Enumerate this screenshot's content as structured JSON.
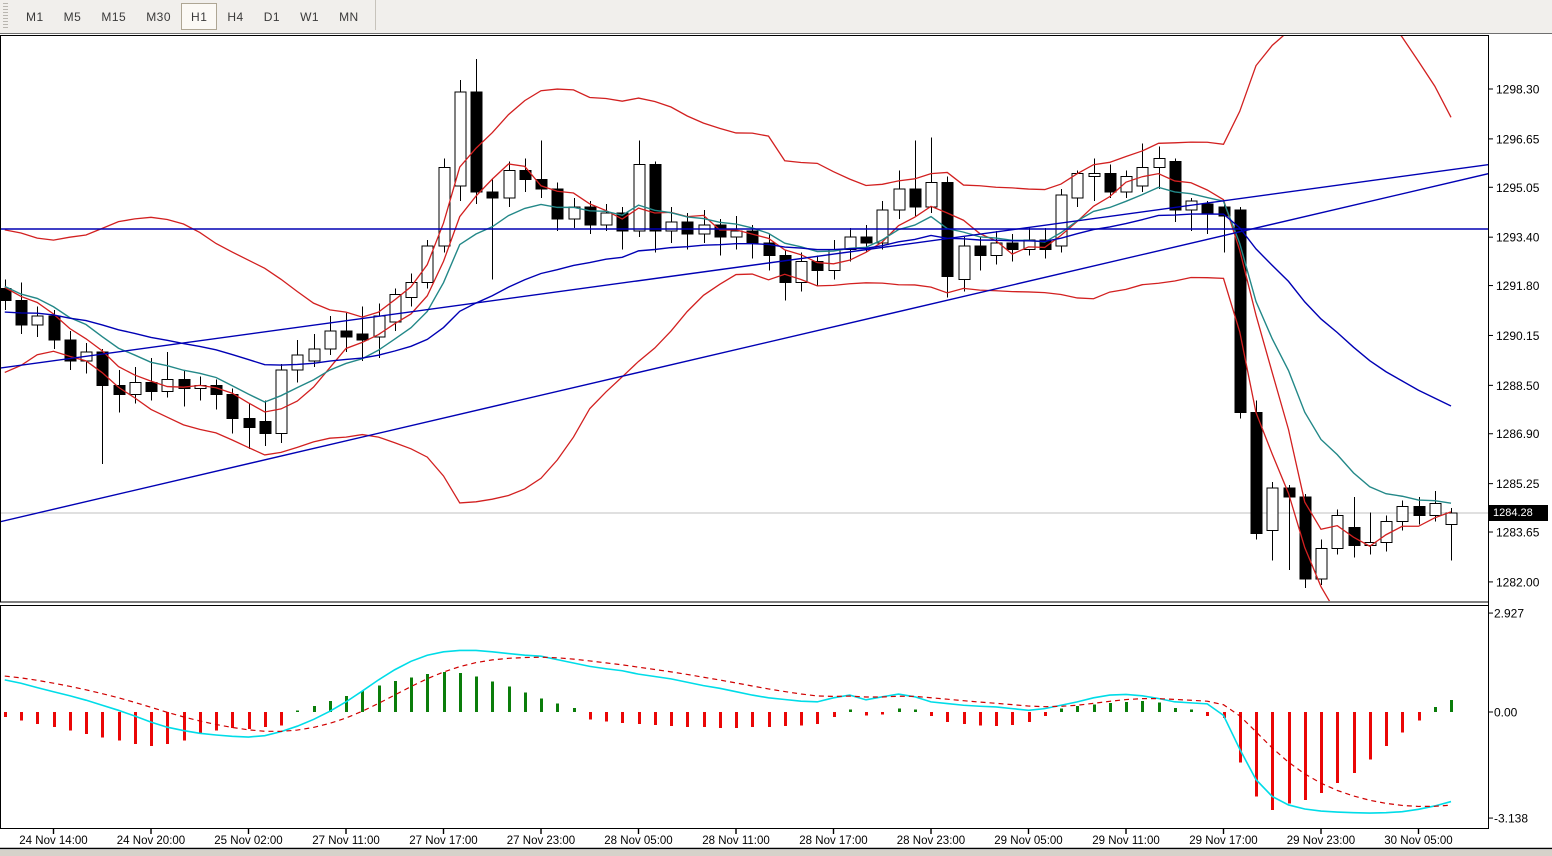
{
  "toolbar": {
    "timeframes": [
      {
        "label": "M1",
        "active": false
      },
      {
        "label": "M5",
        "active": false
      },
      {
        "label": "M15",
        "active": false
      },
      {
        "label": "M30",
        "active": false
      },
      {
        "label": "H1",
        "active": true
      },
      {
        "label": "H4",
        "active": false
      },
      {
        "label": "D1",
        "active": false
      },
      {
        "label": "W1",
        "active": false
      },
      {
        "label": "MN",
        "active": false
      }
    ]
  },
  "price_axis": {
    "current_price": "1284.28",
    "ticks": [
      "1298.30",
      "1296.65",
      "1295.05",
      "1293.40",
      "1291.80",
      "1290.15",
      "1288.50",
      "1286.90",
      "1285.25",
      "1283.65",
      "1282.00"
    ]
  },
  "indicator_axis": {
    "ticks": [
      "2.927",
      "0.00",
      "-3.138"
    ]
  },
  "time_axis": {
    "labels": [
      "24 Nov 14:00",
      "24 Nov 20:00",
      "25 Nov 02:00",
      "27 Nov 11:00",
      "27 Nov 17:00",
      "27 Nov 23:00",
      "28 Nov 05:00",
      "28 Nov 11:00",
      "28 Nov 17:00",
      "28 Nov 23:00",
      "29 Nov 05:00",
      "29 Nov 11:00",
      "29 Nov 17:00",
      "29 Nov 23:00",
      "30 Nov 05:00"
    ]
  },
  "colors": {
    "bull_body": "#ffffff",
    "bear_body": "#000000",
    "candle_outline": "#000000",
    "bands": "#d22020",
    "fast_ma": "#d22020",
    "teal_ma": "#238888",
    "blue_ma": "#0000b4",
    "trendline": "#0000b4",
    "hline": "#0000b4",
    "current_price_line": "#c0c0c0",
    "hist_up": "#0a7d0a",
    "hist_down": "#ea0606",
    "osc_line": "#00dce8",
    "osc_signal": "#d00000",
    "badge_bg": "#000000",
    "badge_text": "#ffffff",
    "border": "#000000",
    "toolbar_bg": "#f1efec",
    "active_tf_bg": "#fbf9f5",
    "bottom_strip": "#d6d2ca"
  },
  "chart_data": {
    "type": "candlestick",
    "timeframe": "H1",
    "price_axis_ticks": [
      1298.3,
      1296.65,
      1295.05,
      1293.4,
      1291.8,
      1290.15,
      1288.5,
      1286.9,
      1285.25,
      1283.65,
      1282.0
    ],
    "visible_price_range": [
      1281.3,
      1300.1
    ],
    "current_price": 1284.28,
    "time_labels": [
      "24 Nov 14:00",
      "24 Nov 20:00",
      "25 Nov 02:00",
      "27 Nov 11:00",
      "27 Nov 17:00",
      "27 Nov 23:00",
      "28 Nov 05:00",
      "28 Nov 11:00",
      "28 Nov 17:00",
      "28 Nov 23:00",
      "29 Nov 05:00",
      "29 Nov 11:00",
      "29 Nov 17:00",
      "29 Nov 23:00",
      "30 Nov 05:00"
    ],
    "label_candle_indices": [
      3,
      9,
      15,
      21,
      27,
      33,
      39,
      45,
      51,
      57,
      63,
      69,
      75,
      81,
      87
    ],
    "candles_ohlc": [
      [
        1291.7,
        1292.0,
        1291.0,
        1291.3
      ],
      [
        1291.3,
        1291.9,
        1290.2,
        1290.5
      ],
      [
        1290.5,
        1291.1,
        1290.1,
        1290.8
      ],
      [
        1290.8,
        1291.0,
        1289.7,
        1290.0
      ],
      [
        1290.0,
        1290.3,
        1289.0,
        1289.3
      ],
      [
        1289.3,
        1289.9,
        1288.9,
        1289.6
      ],
      [
        1289.6,
        1289.7,
        1285.9,
        1288.5
      ],
      [
        1288.5,
        1289.0,
        1287.6,
        1288.2
      ],
      [
        1288.2,
        1289.1,
        1287.9,
        1288.6
      ],
      [
        1288.6,
        1289.4,
        1288.0,
        1288.3
      ],
      [
        1288.3,
        1289.6,
        1288.1,
        1288.7
      ],
      [
        1288.7,
        1289.0,
        1287.8,
        1288.4
      ],
      [
        1288.4,
        1288.8,
        1288.0,
        1288.5
      ],
      [
        1288.5,
        1288.7,
        1287.7,
        1288.2
      ],
      [
        1288.2,
        1288.4,
        1286.9,
        1287.4
      ],
      [
        1287.4,
        1287.9,
        1286.4,
        1287.1
      ],
      [
        1287.3,
        1288.0,
        1286.5,
        1286.9
      ],
      [
        1286.9,
        1289.2,
        1286.6,
        1289.0
      ],
      [
        1289.0,
        1290.0,
        1288.6,
        1289.5
      ],
      [
        1289.3,
        1290.2,
        1289.1,
        1289.7
      ],
      [
        1289.7,
        1290.8,
        1289.5,
        1290.3
      ],
      [
        1290.3,
        1290.9,
        1289.6,
        1290.1
      ],
      [
        1290.2,
        1291.1,
        1289.3,
        1290.0
      ],
      [
        1290.1,
        1291.2,
        1289.4,
        1290.8
      ],
      [
        1290.6,
        1291.7,
        1290.3,
        1291.5
      ],
      [
        1291.4,
        1292.2,
        1291.1,
        1291.9
      ],
      [
        1291.9,
        1293.3,
        1291.7,
        1293.1
      ],
      [
        1293.1,
        1296.0,
        1292.9,
        1295.7
      ],
      [
        1295.1,
        1298.6,
        1294.6,
        1298.2
      ],
      [
        1298.2,
        1299.3,
        1294.5,
        1294.9
      ],
      [
        1294.9,
        1295.3,
        1292.0,
        1294.7
      ],
      [
        1294.7,
        1295.9,
        1294.4,
        1295.6
      ],
      [
        1295.6,
        1296.0,
        1294.9,
        1295.3
      ],
      [
        1295.3,
        1296.6,
        1294.7,
        1295.0
      ],
      [
        1295.0,
        1295.2,
        1293.6,
        1294.0
      ],
      [
        1294.0,
        1294.7,
        1293.7,
        1294.4
      ],
      [
        1294.4,
        1294.6,
        1293.5,
        1293.8
      ],
      [
        1293.8,
        1294.5,
        1293.6,
        1294.2
      ],
      [
        1294.2,
        1294.4,
        1293.0,
        1293.6
      ],
      [
        1293.6,
        1296.6,
        1293.4,
        1295.8
      ],
      [
        1295.8,
        1295.9,
        1292.9,
        1293.6
      ],
      [
        1293.6,
        1294.4,
        1293.2,
        1293.9
      ],
      [
        1293.9,
        1294.2,
        1293.0,
        1293.5
      ],
      [
        1293.5,
        1294.3,
        1293.2,
        1293.8
      ],
      [
        1293.8,
        1294.0,
        1292.8,
        1293.4
      ],
      [
        1293.4,
        1294.1,
        1293.0,
        1293.6
      ],
      [
        1293.6,
        1293.8,
        1292.7,
        1293.2
      ],
      [
        1293.2,
        1293.5,
        1292.3,
        1292.8
      ],
      [
        1292.8,
        1293.0,
        1291.3,
        1291.9
      ],
      [
        1291.9,
        1292.9,
        1291.6,
        1292.6
      ],
      [
        1292.6,
        1292.8,
        1291.8,
        1292.3
      ],
      [
        1292.3,
        1293.3,
        1292.0,
        1293.0
      ],
      [
        1293.0,
        1293.7,
        1292.6,
        1293.4
      ],
      [
        1293.4,
        1293.8,
        1292.9,
        1293.2
      ],
      [
        1293.2,
        1294.6,
        1293.0,
        1294.3
      ],
      [
        1294.3,
        1295.6,
        1294.0,
        1295.0
      ],
      [
        1295.0,
        1296.6,
        1294.1,
        1294.4
      ],
      [
        1294.4,
        1296.7,
        1294.2,
        1295.2
      ],
      [
        1295.2,
        1295.4,
        1291.4,
        1292.1
      ],
      [
        1292.0,
        1293.4,
        1291.6,
        1293.1
      ],
      [
        1293.1,
        1293.4,
        1292.3,
        1292.8
      ],
      [
        1292.8,
        1293.6,
        1292.5,
        1293.2
      ],
      [
        1293.2,
        1293.5,
        1292.6,
        1293.0
      ],
      [
        1293.0,
        1293.7,
        1292.8,
        1293.3
      ],
      [
        1293.3,
        1293.7,
        1292.7,
        1293.0
      ],
      [
        1293.1,
        1295.0,
        1292.9,
        1294.8
      ],
      [
        1294.7,
        1295.6,
        1294.4,
        1295.5
      ],
      [
        1295.4,
        1296.0,
        1294.6,
        1295.5
      ],
      [
        1295.5,
        1295.8,
        1294.7,
        1294.9
      ],
      [
        1294.9,
        1295.6,
        1294.7,
        1295.4
      ],
      [
        1295.1,
        1296.5,
        1294.9,
        1295.7
      ],
      [
        1295.7,
        1296.4,
        1295.0,
        1296.0
      ],
      [
        1295.9,
        1296.0,
        1293.9,
        1294.3
      ],
      [
        1294.3,
        1294.7,
        1293.6,
        1294.6
      ],
      [
        1294.5,
        1294.6,
        1293.5,
        1294.2
      ],
      [
        1294.4,
        1294.5,
        1292.9,
        1294.1
      ],
      [
        1294.3,
        1294.4,
        1287.4,
        1287.6
      ],
      [
        1287.6,
        1288.0,
        1283.4,
        1283.6
      ],
      [
        1283.7,
        1285.3,
        1282.7,
        1285.1
      ],
      [
        1285.1,
        1285.2,
        1282.4,
        1284.8
      ],
      [
        1284.8,
        1284.9,
        1281.8,
        1282.1
      ],
      [
        1282.1,
        1283.4,
        1281.9,
        1283.1
      ],
      [
        1283.1,
        1284.4,
        1282.9,
        1284.2
      ],
      [
        1283.8,
        1284.8,
        1282.8,
        1283.2
      ],
      [
        1283.2,
        1284.3,
        1282.9,
        1283.3
      ],
      [
        1283.3,
        1284.2,
        1283.0,
        1284.0
      ],
      [
        1284.0,
        1284.7,
        1283.7,
        1284.5
      ],
      [
        1284.5,
        1284.8,
        1283.9,
        1284.2
      ],
      [
        1284.2,
        1285.0,
        1284.0,
        1284.6
      ],
      [
        1283.9,
        1284.45,
        1282.7,
        1284.28
      ]
    ],
    "prehistory_closes": [
      1288.8,
      1289.2,
      1289.0,
      1289.5,
      1290.0,
      1290.4,
      1290.2,
      1290.8,
      1291.2,
      1291.6,
      1292.0,
      1292.4,
      1292.8,
      1293.0,
      1292.6,
      1292.3,
      1292.0,
      1291.8,
      1291.9,
      1291.7
    ],
    "overlays": {
      "bollinger": {
        "period": 20,
        "deviation": 2
      },
      "fast_sma_period": 5,
      "teal_ema_period": 9,
      "blue_ema_period": 28,
      "horizontal_line_price": 1293.67,
      "trendlines": [
        {
          "i1": -0.6,
          "p1": 1283.95,
          "i2": 91.3,
          "p2": 1295.5
        },
        {
          "i1": -0.6,
          "p1": 1289.05,
          "i2": 91.3,
          "p2": 1295.8
        }
      ]
    },
    "indicator": {
      "type": "oscillator",
      "scale_ticks": [
        2.927,
        0.0,
        -3.138
      ],
      "signal_ema_period": 7,
      "histogram": [
        -0.15,
        -0.25,
        -0.35,
        -0.45,
        -0.55,
        -0.65,
        -0.75,
        -0.85,
        -0.95,
        -1.0,
        -0.95,
        -0.85,
        -0.62,
        -0.55,
        -0.48,
        -0.5,
        -0.45,
        -0.4,
        0.05,
        0.18,
        0.32,
        0.48,
        0.62,
        0.78,
        0.92,
        1.02,
        1.12,
        1.18,
        1.15,
        1.05,
        0.9,
        0.75,
        0.58,
        0.4,
        0.25,
        0.12,
        -0.22,
        -0.28,
        -0.32,
        -0.35,
        -0.38,
        -0.42,
        -0.45,
        -0.45,
        -0.48,
        -0.48,
        -0.45,
        -0.45,
        -0.42,
        -0.4,
        -0.35,
        -0.15,
        0.08,
        -0.1,
        -0.08,
        0.1,
        0.08,
        -0.12,
        -0.3,
        -0.35,
        -0.4,
        -0.42,
        -0.38,
        -0.3,
        -0.12,
        0.1,
        0.18,
        0.22,
        0.27,
        0.3,
        0.32,
        0.28,
        0.12,
        0.08,
        -0.12,
        -0.18,
        -1.5,
        -2.5,
        -2.9,
        -2.7,
        -2.6,
        -2.4,
        -2.1,
        -1.8,
        -1.4,
        -1.0,
        -0.6,
        -0.25,
        0.15,
        0.35
      ],
      "line": [
        0.95,
        0.85,
        0.72,
        0.6,
        0.48,
        0.35,
        0.2,
        0.05,
        -0.12,
        -0.3,
        -0.45,
        -0.55,
        -0.63,
        -0.68,
        -0.72,
        -0.74,
        -0.7,
        -0.58,
        -0.42,
        -0.22,
        0.02,
        0.3,
        0.62,
        0.95,
        1.25,
        1.5,
        1.68,
        1.78,
        1.82,
        1.82,
        1.78,
        1.73,
        1.68,
        1.65,
        1.55,
        1.45,
        1.35,
        1.28,
        1.22,
        1.12,
        1.05,
        0.98,
        0.88,
        0.78,
        0.7,
        0.6,
        0.5,
        0.42,
        0.37,
        0.32,
        0.3,
        0.42,
        0.5,
        0.36,
        0.45,
        0.53,
        0.45,
        0.3,
        0.25,
        0.2,
        0.17,
        0.15,
        0.1,
        0.05,
        0.1,
        0.2,
        0.3,
        0.42,
        0.5,
        0.52,
        0.48,
        0.4,
        0.3,
        0.27,
        0.24,
        -0.1,
        -1.1,
        -2.0,
        -2.5,
        -2.75,
        -2.87,
        -2.93,
        -2.96,
        -2.98,
        -2.99,
        -2.98,
        -2.95,
        -2.88,
        -2.78,
        -2.65
      ]
    }
  }
}
